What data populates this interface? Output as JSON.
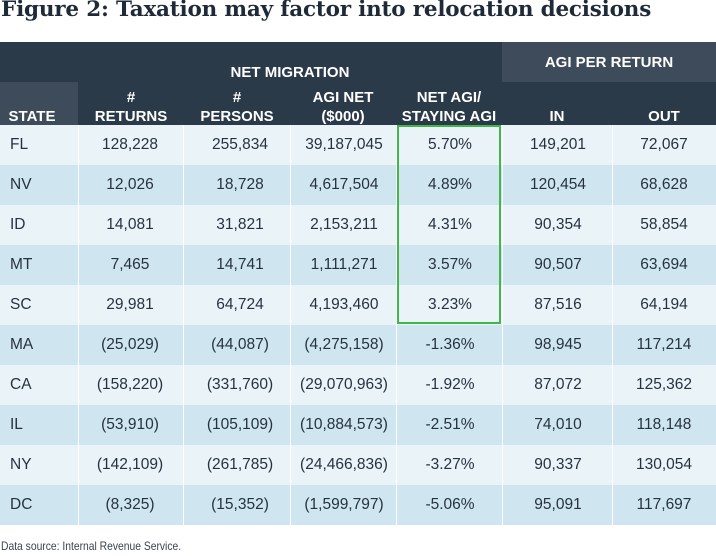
{
  "title": "Figure 2: Taxation may factor into relocation decisions",
  "header": {
    "group_net_migration": "NET MIGRATION",
    "group_agi_per_return": "AGI PER RETURN",
    "state": "STATE",
    "returns_l1": "#",
    "returns_l2": "RETURNS",
    "persons_l1": "#",
    "persons_l2": "PERSONS",
    "agi_net_l1": "AGI NET",
    "agi_net_l2": "($000)",
    "net_agi_l1": "NET AGI/",
    "net_agi_l2": "STAYING AGI",
    "in": "IN",
    "out": "OUT"
  },
  "rows": [
    {
      "state": "FL",
      "returns": "128,228",
      "persons": "255,834",
      "agi_net": "39,187,045",
      "net_agi_ratio": "5.70%",
      "in": "149,201",
      "out": "72,067"
    },
    {
      "state": "NV",
      "returns": "12,026",
      "persons": "18,728",
      "agi_net": "4,617,504",
      "net_agi_ratio": "4.89%",
      "in": "120,454",
      "out": "68,628"
    },
    {
      "state": "ID",
      "returns": "14,081",
      "persons": "31,821",
      "agi_net": "2,153,211",
      "net_agi_ratio": "4.31%",
      "in": "90,354",
      "out": "58,854"
    },
    {
      "state": "MT",
      "returns": "7,465",
      "persons": "14,741",
      "agi_net": "1,111,271",
      "net_agi_ratio": "3.57%",
      "in": "90,507",
      "out": "63,694"
    },
    {
      "state": "SC",
      "returns": "29,981",
      "persons": "64,724",
      "agi_net": "4,193,460",
      "net_agi_ratio": "3.23%",
      "in": "87,516",
      "out": "64,194"
    },
    {
      "state": "MA",
      "returns": "(25,029)",
      "persons": "(44,087)",
      "agi_net": "(4,275,158)",
      "net_agi_ratio": "-1.36%",
      "in": "98,945",
      "out": "117,214"
    },
    {
      "state": "CA",
      "returns": "(158,220)",
      "persons": "(331,760)",
      "agi_net": "(29,070,963)",
      "net_agi_ratio": "-1.92%",
      "in": "87,072",
      "out": "125,362"
    },
    {
      "state": "IL",
      "returns": "(53,910)",
      "persons": "(105,109)",
      "agi_net": "(10,884,573)",
      "net_agi_ratio": "-2.51%",
      "in": "74,010",
      "out": "118,148"
    },
    {
      "state": "NY",
      "returns": "(142,109)",
      "persons": "(261,785)",
      "agi_net": "(24,466,836)",
      "net_agi_ratio": "-3.27%",
      "in": "90,337",
      "out": "130,054"
    },
    {
      "state": "DC",
      "returns": "(8,325)",
      "persons": "(15,352)",
      "agi_net": "(1,599,797)",
      "net_agi_ratio": "-5.06%",
      "in": "95,091",
      "out": "117,697"
    }
  ],
  "source": "Data source: Internal Revenue Service.",
  "colors": {
    "header_bg": "#2b3a49",
    "subheader_bg": "#3d4b5b",
    "row_light": "#e9f3f8",
    "row_dark": "#cfe5ef",
    "highlight": "#43b649"
  }
}
